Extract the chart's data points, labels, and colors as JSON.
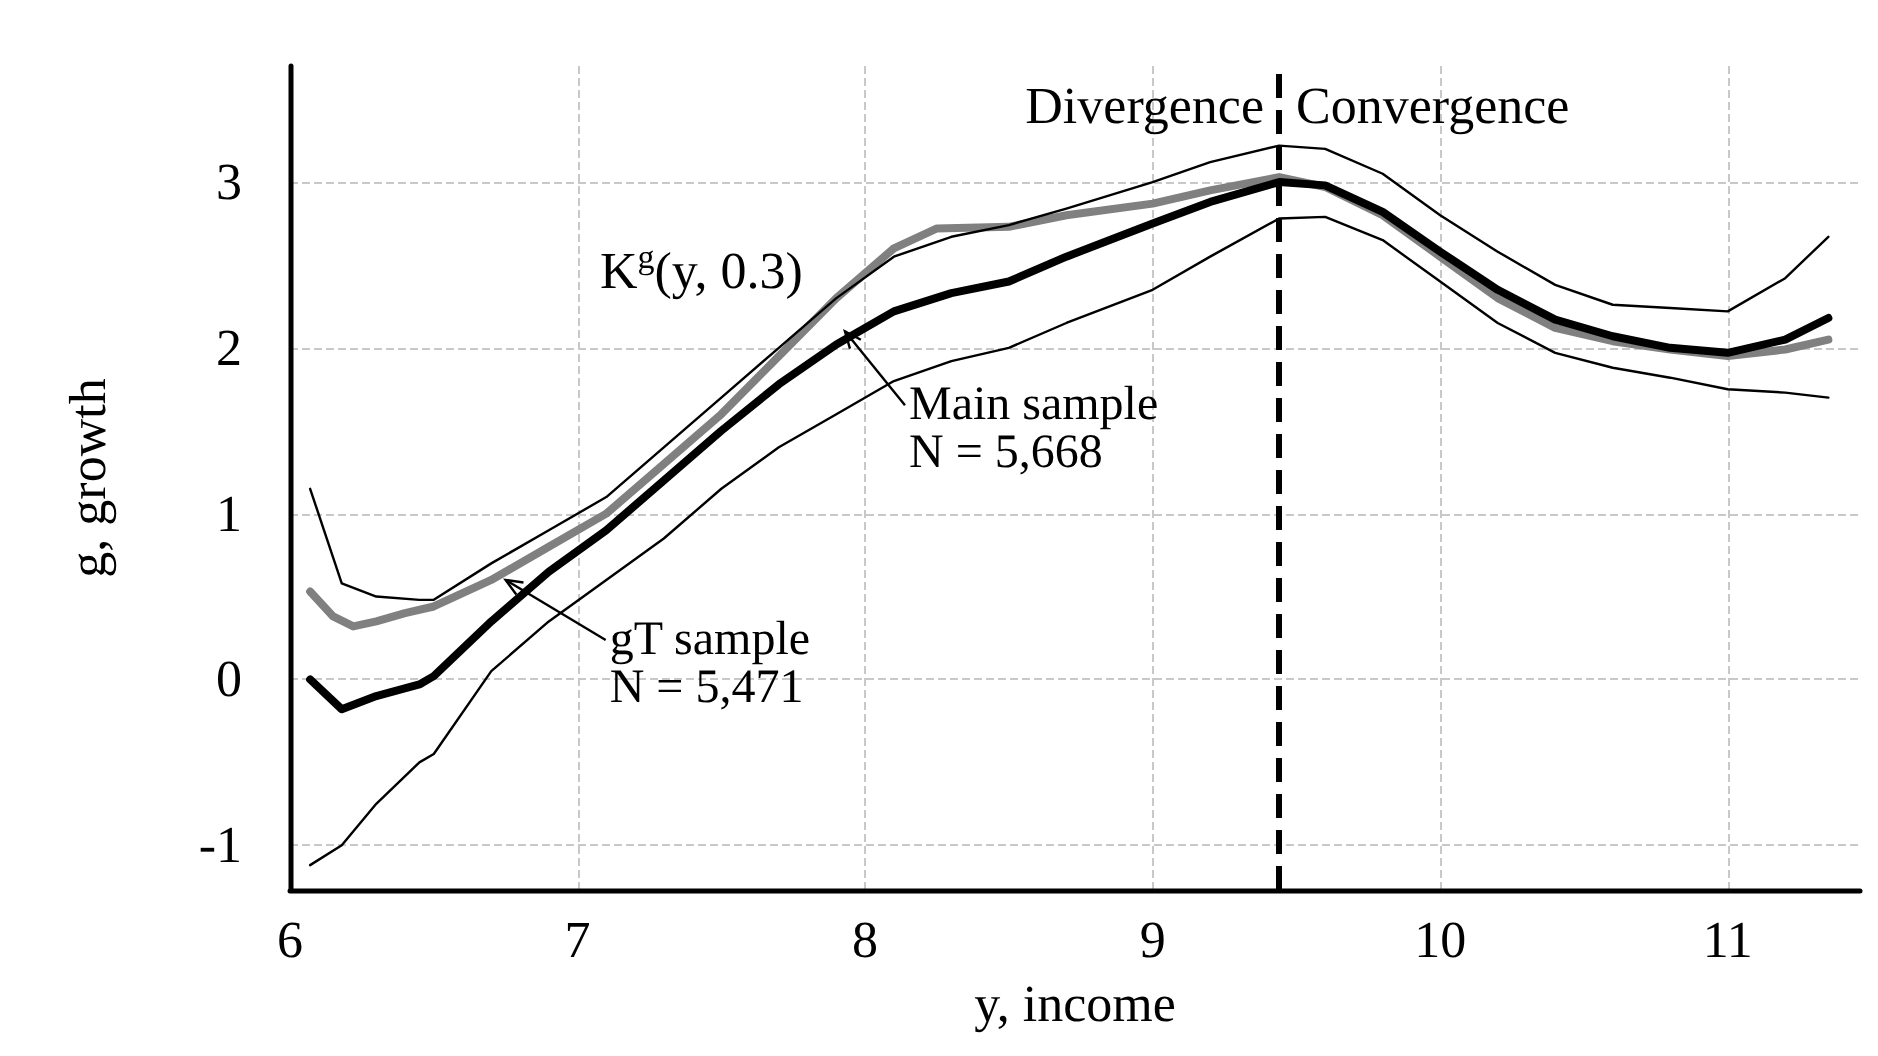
{
  "chart_data": {
    "type": "line",
    "xlabel": "y, income",
    "ylabel": "g, growth",
    "xlim": [
      6,
      11.46
    ],
    "ylim": [
      -1.27,
      3.7
    ],
    "xticks": [
      6,
      7,
      8,
      9,
      10,
      11
    ],
    "yticks": [
      -1,
      0,
      1,
      2,
      3
    ],
    "grid": true,
    "marker": "none",
    "series": [
      {
        "color": "#000000",
        "x": [
          6.07,
          6.18,
          6.3,
          6.45,
          6.5,
          6.7,
          6.9,
          7.1,
          7.3,
          7.5,
          7.7,
          7.9,
          8.1,
          8.3,
          8.5,
          8.7,
          9.0,
          9.2,
          9.44,
          9.6,
          9.8,
          10.0,
          10.2,
          10.4,
          10.6,
          10.8,
          11.0,
          11.2,
          11.35
        ],
        "values": [
          0,
          -0.18,
          -0.1,
          -0.03,
          0.02,
          0.35,
          0.65,
          0.9,
          1.2,
          1.5,
          1.78,
          2.02,
          2.22,
          2.33,
          2.4,
          2.55,
          2.75,
          2.88,
          3.0,
          2.98,
          2.82,
          2.58,
          2.35,
          2.17,
          2.07,
          2.0,
          1.97,
          2.05,
          2.18
        ]
      },
      {
        "color": "#000000",
        "x": [
          6.07,
          6.18,
          6.3,
          6.45,
          6.5,
          6.7,
          6.9,
          7.1,
          7.3,
          7.5,
          7.7,
          7.9,
          8.1,
          8.3,
          8.5,
          8.7,
          9.0,
          9.2,
          9.44,
          9.6,
          9.8,
          10.0,
          10.2,
          10.4,
          10.6,
          10.8,
          11.0,
          11.2,
          11.35
        ],
        "values": [
          1.15,
          0.58,
          0.5,
          0.48,
          0.48,
          0.7,
          0.9,
          1.1,
          1.4,
          1.7,
          2.0,
          2.3,
          2.55,
          2.67,
          2.74,
          2.84,
          3.0,
          3.12,
          3.22,
          3.2,
          3.05,
          2.8,
          2.58,
          2.38,
          2.26,
          2.24,
          2.22,
          2.42,
          2.67
        ]
      },
      {
        "color": "#000000",
        "x": [
          6.07,
          6.18,
          6.3,
          6.45,
          6.5,
          6.7,
          6.9,
          7.1,
          7.3,
          7.5,
          7.7,
          7.9,
          8.1,
          8.3,
          8.5,
          8.7,
          9.0,
          9.2,
          9.44,
          9.6,
          9.8,
          10.0,
          10.2,
          10.4,
          10.6,
          10.8,
          11.0,
          11.2,
          11.35
        ],
        "values": [
          -1.12,
          -1.0,
          -0.75,
          -0.5,
          -0.45,
          0.05,
          0.35,
          0.6,
          0.85,
          1.15,
          1.4,
          1.6,
          1.8,
          1.92,
          2.0,
          2.15,
          2.35,
          2.55,
          2.78,
          2.79,
          2.65,
          2.4,
          2.15,
          1.97,
          1.88,
          1.82,
          1.75,
          1.73,
          1.7
        ]
      },
      {
        "color": "#808080",
        "x": [
          6.07,
          6.15,
          6.22,
          6.3,
          6.4,
          6.5,
          6.7,
          6.9,
          7.1,
          7.3,
          7.5,
          7.7,
          7.9,
          8.1,
          8.25,
          8.5,
          8.7,
          9.0,
          9.2,
          9.44,
          9.6,
          9.8,
          10.0,
          10.2,
          10.4,
          10.6,
          10.8,
          11.0,
          11.2,
          11.35
        ],
        "values": [
          0.53,
          0.38,
          0.32,
          0.35,
          0.4,
          0.44,
          0.6,
          0.8,
          1.0,
          1.3,
          1.6,
          1.95,
          2.3,
          2.6,
          2.72,
          2.73,
          2.8,
          2.87,
          2.95,
          3.03,
          2.97,
          2.8,
          2.55,
          2.3,
          2.12,
          2.04,
          1.99,
          1.95,
          1.99,
          2.05
        ]
      }
    ],
    "ref_lines": [
      {
        "axis": "x",
        "value": 9.44,
        "line_style": "dashed",
        "color": "#000000"
      }
    ],
    "annotations": [
      "K$^{g}$(y, 0.3)",
      "Divergence",
      "Convergence",
      {
        "text": "Main sample\nN = 5,668",
        "x": 7.93,
        "y": 2.1
      },
      {
        "text": "gT sample\nN = 5,471",
        "x": 6.75,
        "y": 0.6
      }
    ]
  }
}
